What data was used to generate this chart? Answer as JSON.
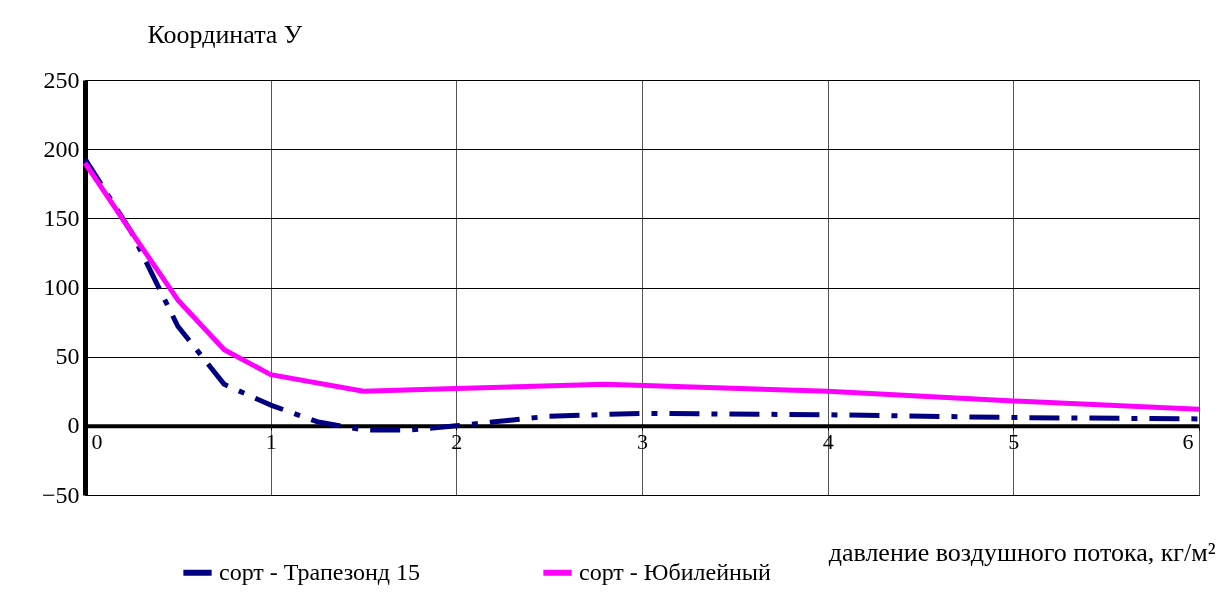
{
  "chart_data": {
    "type": "line",
    "ylabel": "Координата У",
    "xlabel": "давление воздушного потока, кг/м²",
    "xlim": [
      0,
      6
    ],
    "xticks": [
      0,
      1,
      2,
      3,
      4,
      5,
      6
    ],
    "ylim": [
      -50,
      250
    ],
    "yticks": [
      -50,
      0,
      50,
      100,
      150,
      200,
      250
    ],
    "grid": true,
    "legend": "bottom",
    "series": [
      {
        "name": "сорт - Трапезонд 15",
        "color": "#000080",
        "line_style": "dashed",
        "x": [
          0,
          0.25,
          0.5,
          0.75,
          1,
          1.25,
          1.5,
          1.75,
          2,
          2.5,
          3,
          4,
          5,
          6
        ],
        "values": [
          193,
          140,
          72,
          30,
          15,
          3,
          -3,
          -3,
          0,
          7,
          9,
          8,
          6,
          5
        ]
      },
      {
        "name": "сорт - Юбилейный",
        "color": "#ff00ff",
        "line_style": "solid",
        "x": [
          0,
          0.25,
          0.5,
          0.75,
          1,
          1.5,
          2,
          2.8,
          4,
          5,
          6
        ],
        "values": [
          190,
          140,
          91,
          55,
          37,
          25,
          27,
          30,
          25,
          18,
          12
        ]
      }
    ]
  }
}
